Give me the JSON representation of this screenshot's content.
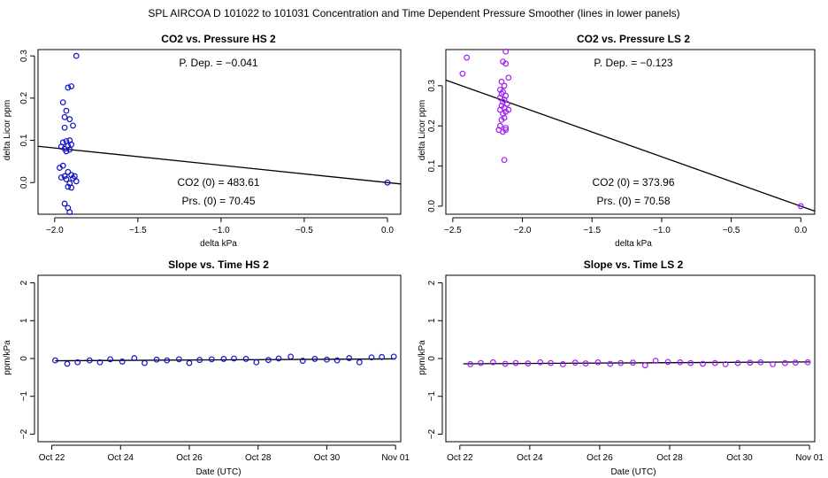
{
  "main_title": "SPL   AIRCOA D   101022 to 101031   Concentration and Time Dependent Pressure Smoother (lines in lower panels)",
  "colors": {
    "hs": "#1010c8",
    "ls": "#a020f0",
    "axis": "#000000",
    "fit": "#000000"
  },
  "chart_data": [
    {
      "id": "co2-pressure-hs",
      "type": "scatter",
      "title": "CO2 vs. Pressure HS 2",
      "xlabel": "delta kPa",
      "ylabel": "delta Licor ppm",
      "xlim": [
        -2.1,
        0.08
      ],
      "ylim": [
        -0.075,
        0.315
      ],
      "xticks": [
        -2.0,
        -1.5,
        -1.0,
        -0.5,
        0.0
      ],
      "xtick_labels": [
        "−2.0",
        "−1.5",
        "−1.0",
        "−0.5",
        "0.0"
      ],
      "yticks": [
        0.0,
        0.1,
        0.2,
        0.3
      ],
      "ytick_labels": [
        "0.0",
        "0.1",
        "0.2",
        "0.3"
      ],
      "color_key": "hs",
      "annotations": [
        "P. Dep. =  −0.041",
        "CO2 (0) =  483.61",
        "Prs. (0) =  70.45"
      ],
      "fit_line": {
        "x": [
          -2.1,
          0.08
        ],
        "y": [
          0.086,
          -0.0033
        ]
      },
      "points": {
        "x": [
          -1.87,
          -1.95,
          -1.92,
          -1.9,
          -1.93,
          -1.94,
          -1.91,
          -1.89,
          -1.94,
          -1.91,
          -1.93,
          -1.95,
          -1.9,
          -1.92,
          -1.96,
          -1.94,
          -1.91,
          -1.93,
          -1.95,
          -1.97,
          -1.92,
          -1.9,
          -1.94,
          -1.96,
          -1.89,
          -1.93,
          -1.91,
          -1.87,
          -1.88,
          -1.92,
          -1.9,
          -1.94,
          -1.92,
          -1.91,
          0.0
        ],
        "y": [
          0.3,
          0.19,
          0.225,
          0.228,
          0.17,
          0.155,
          0.15,
          0.135,
          0.13,
          0.1,
          0.098,
          0.095,
          0.09,
          0.087,
          0.085,
          0.08,
          0.078,
          0.074,
          0.04,
          0.035,
          0.025,
          0.018,
          0.015,
          0.012,
          0.01,
          0.008,
          -0.002,
          0.003,
          0.015,
          -0.01,
          -0.012,
          -0.05,
          -0.06,
          -0.07,
          0.0
        ]
      }
    },
    {
      "id": "co2-pressure-ls",
      "type": "scatter",
      "title": "CO2 vs. Pressure LS 2",
      "xlabel": "delta kPa",
      "ylabel": "delta Licor ppm",
      "xlim": [
        -2.55,
        0.1
      ],
      "ylim": [
        -0.02,
        0.39
      ],
      "xticks": [
        -2.5,
        -2.0,
        -1.5,
        -1.0,
        -0.5,
        0.0
      ],
      "xtick_labels": [
        "−2.5",
        "−2.0",
        "−1.5",
        "−1.0",
        "−0.5",
        "0.0"
      ],
      "yticks": [
        0.0,
        0.1,
        0.2,
        0.3
      ],
      "ytick_labels": [
        "0.0",
        "0.1",
        "0.2",
        "0.3"
      ],
      "color_key": "ls",
      "annotations": [
        "P. Dep. =  −0.123",
        "CO2 (0) =  373.96",
        "Prs. (0) =  70.58"
      ],
      "fit_line": {
        "x": [
          -2.55,
          0.1
        ],
        "y": [
          0.314,
          -0.0123
        ]
      },
      "points": {
        "x": [
          -2.4,
          -2.43,
          -2.12,
          -2.14,
          -2.12,
          -2.1,
          -2.15,
          -2.13,
          -2.16,
          -2.14,
          -2.15,
          -2.12,
          -2.16,
          -2.13,
          -2.14,
          -2.11,
          -2.15,
          -2.13,
          -2.16,
          -2.12,
          -2.14,
          -2.1,
          -2.13,
          -2.15,
          -2.17,
          -2.12,
          -2.14,
          -2.16,
          -2.13,
          -2.12,
          0.0
        ],
        "y": [
          0.37,
          0.33,
          0.385,
          0.36,
          0.355,
          0.32,
          0.31,
          0.3,
          0.29,
          0.285,
          0.28,
          0.275,
          0.27,
          0.265,
          0.26,
          0.255,
          0.25,
          0.245,
          0.24,
          0.235,
          0.23,
          0.24,
          0.22,
          0.215,
          0.19,
          0.195,
          0.185,
          0.2,
          0.115,
          0.19,
          0.0
        ]
      }
    },
    {
      "id": "slope-time-hs",
      "type": "scatter",
      "title": "Slope vs. Time HS 2",
      "xlabel": "Date (UTC)",
      "ylabel": "ppm/kPa",
      "xlim": [
        21.6,
        32.15
      ],
      "ylim": [
        -2.2,
        2.2
      ],
      "xticks": [
        22,
        24,
        26,
        28,
        30,
        32
      ],
      "xtick_labels": [
        "Oct 22",
        "Oct 24",
        "Oct 26",
        "Oct 28",
        "Oct 30",
        "Nov 01"
      ],
      "yticks": [
        -2,
        -1,
        0,
        1,
        2
      ],
      "ytick_labels": [
        "−2",
        "−1",
        "0",
        "1",
        "2"
      ],
      "color_key": "hs",
      "fit_line": {
        "x": [
          22.1,
          32.0
        ],
        "y": [
          -0.06,
          -0.01
        ]
      },
      "points": {
        "x": [
          22.1,
          22.45,
          22.75,
          23.1,
          23.4,
          23.7,
          24.05,
          24.4,
          24.7,
          25.05,
          25.35,
          25.7,
          26.0,
          26.3,
          26.65,
          27.0,
          27.3,
          27.65,
          27.95,
          28.3,
          28.6,
          28.95,
          29.3,
          29.65,
          30.0,
          30.3,
          30.65,
          30.95,
          31.3,
          31.6,
          31.95
        ],
        "y": [
          -0.05,
          -0.14,
          -0.1,
          -0.05,
          -0.1,
          -0.02,
          -0.08,
          0.01,
          -0.12,
          -0.03,
          -0.05,
          -0.02,
          -0.12,
          -0.04,
          -0.02,
          -0.01,
          0.0,
          -0.01,
          -0.1,
          -0.04,
          0.0,
          0.05,
          -0.06,
          -0.01,
          -0.03,
          -0.05,
          0.01,
          -0.1,
          0.03,
          0.04,
          0.05
        ]
      }
    },
    {
      "id": "slope-time-ls",
      "type": "scatter",
      "title": "Slope vs. Time LS 2",
      "xlabel": "Date (UTC)",
      "ylabel": "ppm/kPa",
      "xlim": [
        21.6,
        32.15
      ],
      "ylim": [
        -2.2,
        2.2
      ],
      "xticks": [
        22,
        24,
        26,
        28,
        30,
        32
      ],
      "xtick_labels": [
        "Oct 22",
        "Oct 24",
        "Oct 26",
        "Oct 28",
        "Oct 30",
        "Nov 01"
      ],
      "yticks": [
        -2,
        -1,
        0,
        1,
        2
      ],
      "ytick_labels": [
        "−2",
        "−1",
        "0",
        "1",
        "2"
      ],
      "color_key": "ls",
      "fit_line": {
        "x": [
          22.1,
          32.0
        ],
        "y": [
          -0.14,
          -0.09
        ]
      },
      "points": {
        "x": [
          22.3,
          22.6,
          22.95,
          23.3,
          23.6,
          23.95,
          24.3,
          24.6,
          24.95,
          25.3,
          25.6,
          25.95,
          26.3,
          26.6,
          26.95,
          27.3,
          27.6,
          27.95,
          28.3,
          28.6,
          28.95,
          29.3,
          29.6,
          29.95,
          30.3,
          30.6,
          30.95,
          31.3,
          31.6,
          31.95
        ],
        "y": [
          -0.15,
          -0.12,
          -0.1,
          -0.14,
          -0.12,
          -0.13,
          -0.1,
          -0.12,
          -0.15,
          -0.11,
          -0.13,
          -0.1,
          -0.14,
          -0.12,
          -0.11,
          -0.18,
          -0.06,
          -0.09,
          -0.1,
          -0.12,
          -0.14,
          -0.12,
          -0.15,
          -0.12,
          -0.11,
          -0.1,
          -0.15,
          -0.12,
          -0.11,
          -0.1
        ]
      }
    }
  ]
}
